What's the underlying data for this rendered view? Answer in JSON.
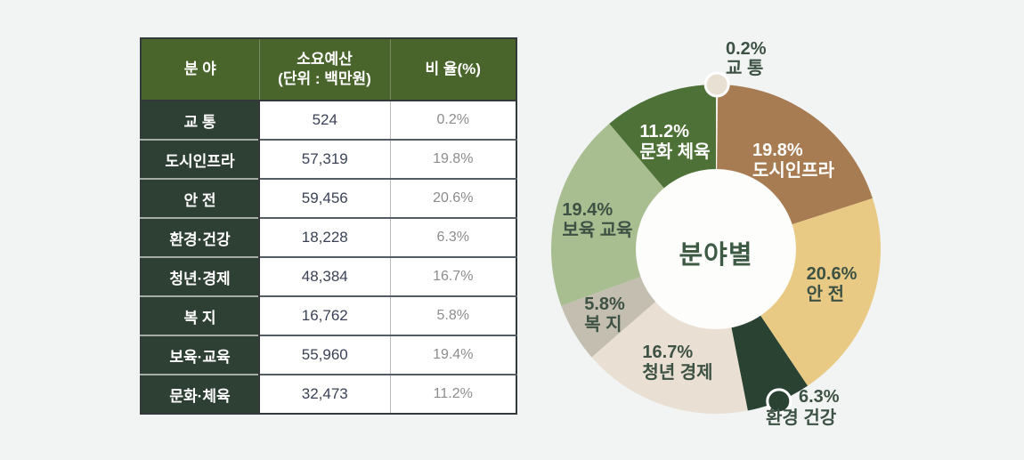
{
  "colors": {
    "background": "#f2f4f3",
    "table_header_bg": "#4a652c",
    "table_field_bg": "#2e3f33",
    "budget_text": "#3b4257",
    "ratio_text": "#8c8c8c",
    "donut_hole": "#fdfdfc",
    "dark_label": "#3d5244"
  },
  "table": {
    "header_field": "분 야",
    "header_budget_line1": "소요예산",
    "header_budget_line2": "(단위 : 백만원)",
    "header_ratio": "비 율(%)",
    "rows": [
      {
        "field": "교 통",
        "budget": "524",
        "ratio": "0.2%"
      },
      {
        "field": "도시인프라",
        "budget": "57,319",
        "ratio": "19.8%"
      },
      {
        "field": "안 전",
        "budget": "59,456",
        "ratio": "20.6%"
      },
      {
        "field": "환경·건강",
        "budget": "18,228",
        "ratio": "6.3%"
      },
      {
        "field": "청년·경제",
        "budget": "48,384",
        "ratio": "16.7%"
      },
      {
        "field": "복 지",
        "budget": "16,762",
        "ratio": "5.8%"
      },
      {
        "field": "보육·교육",
        "budget": "55,960",
        "ratio": "19.4%"
      },
      {
        "field": "문화·체육",
        "budget": "32,473",
        "ratio": "11.2%"
      }
    ]
  },
  "chart_data": {
    "type": "pie",
    "subtype": "donut",
    "title": "분야별",
    "legend_position": "none",
    "start_angle_deg": 0,
    "direction": "clockwise",
    "slices": [
      {
        "label": "교 통",
        "pct": 0.2,
        "color": "#e8e0d3",
        "label_color": "#3d5244",
        "callout": "top"
      },
      {
        "label": "도시인프라",
        "pct": 19.8,
        "color": "#a87c52",
        "label_color": "#ffffff"
      },
      {
        "label": "안 전",
        "pct": 20.6,
        "color": "#e9ca84",
        "label_color": "#3d5244"
      },
      {
        "label": "환경 건강",
        "pct": 6.3,
        "color": "#2a4232",
        "label_color": "#3d5244",
        "callout": "bottom"
      },
      {
        "label": "청년 경제",
        "pct": 16.7,
        "color": "#e9dfd2",
        "label_color": "#3d5244"
      },
      {
        "label": "복 지",
        "pct": 5.8,
        "color": "#c3beb0",
        "label_color": "#3d5244"
      },
      {
        "label": "보육 교육",
        "pct": 19.4,
        "color": "#a8bd90",
        "label_color": "#3d5244"
      },
      {
        "label": "문화 체육",
        "pct": 11.2,
        "color": "#4d7136",
        "label_color": "#ffffff"
      }
    ]
  }
}
